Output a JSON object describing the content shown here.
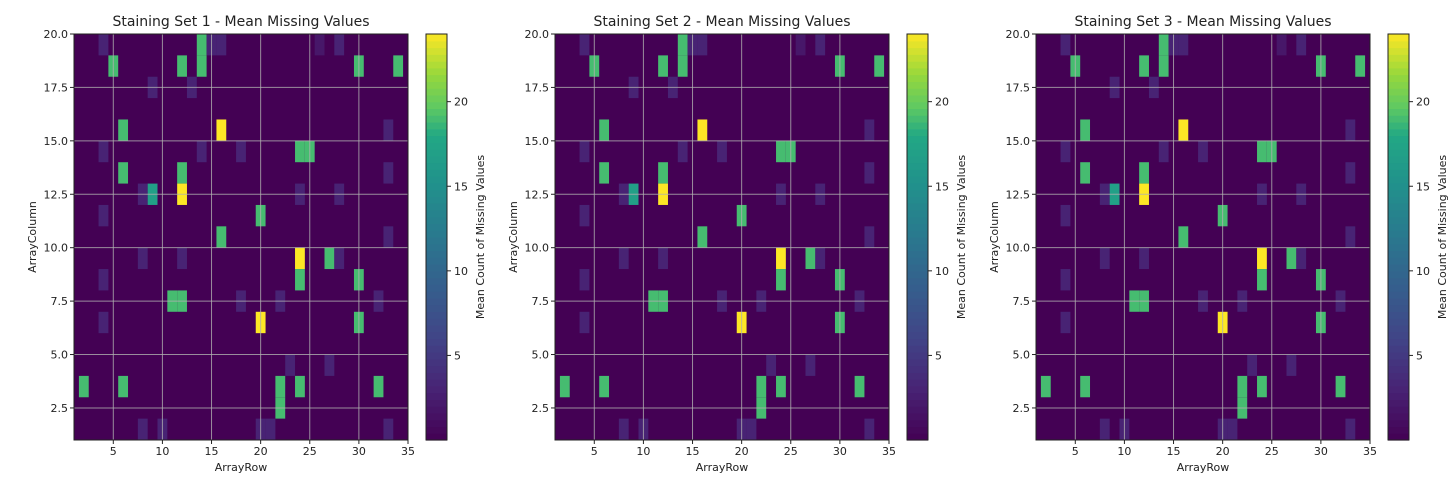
{
  "chart_data": [
    {
      "type": "heatmap",
      "title": "Staining Set 1 - Mean Missing Values",
      "xlabel": "ArrayRow",
      "ylabel": "ArrayColumn",
      "xlim": [
        1,
        35
      ],
      "ylim": [
        1,
        20
      ],
      "xticks": [
        5,
        10,
        15,
        20,
        25,
        30,
        35
      ],
      "yticks": [
        2.5,
        5.0,
        7.5,
        10.0,
        12.5,
        15.0,
        17.5,
        20.0
      ],
      "grid": true,
      "colorbar": {
        "label": "Mean Count of Missing Values",
        "ticks": [
          5,
          10,
          15,
          20
        ],
        "range": [
          0,
          24
        ],
        "colormap": "viridis"
      },
      "cells": [
        [
          4,
          19.5,
          3
        ],
        [
          5,
          18.5,
          19
        ],
        [
          14,
          19.5,
          19
        ],
        [
          14,
          18.5,
          19
        ],
        [
          15,
          19.5,
          3
        ],
        [
          16,
          19.5,
          3
        ],
        [
          26,
          19.5,
          2
        ],
        [
          28,
          19.5,
          3
        ],
        [
          12,
          18.5,
          19
        ],
        [
          30,
          18.5,
          19
        ],
        [
          34,
          18.5,
          19
        ],
        [
          9,
          17.5,
          3
        ],
        [
          13,
          17.5,
          3
        ],
        [
          16,
          15.5,
          24
        ],
        [
          6,
          15.5,
          19
        ],
        [
          33,
          15.5,
          3
        ],
        [
          4,
          14.5,
          3
        ],
        [
          14,
          14.5,
          3
        ],
        [
          18,
          14.5,
          3
        ],
        [
          24,
          14.5,
          19
        ],
        [
          25,
          14.5,
          19
        ],
        [
          6,
          13.5,
          19
        ],
        [
          12,
          13.5,
          19
        ],
        [
          33,
          13.5,
          3
        ],
        [
          8,
          12.5,
          3
        ],
        [
          9,
          12.5,
          17
        ],
        [
          12,
          12.5,
          24
        ],
        [
          24,
          12.5,
          3
        ],
        [
          28,
          12.5,
          3
        ],
        [
          4,
          11.5,
          3
        ],
        [
          20,
          11.5,
          19
        ],
        [
          16,
          10.5,
          19
        ],
        [
          33,
          10.5,
          3
        ],
        [
          8,
          9.5,
          3
        ],
        [
          12,
          9.5,
          3
        ],
        [
          24,
          9.5,
          24
        ],
        [
          27,
          9.5,
          19
        ],
        [
          28,
          9.5,
          3
        ],
        [
          4,
          8.5,
          3
        ],
        [
          24,
          8.5,
          19
        ],
        [
          30,
          8.5,
          19
        ],
        [
          11,
          7.5,
          19
        ],
        [
          12,
          7.5,
          19
        ],
        [
          18,
          7.5,
          3
        ],
        [
          22,
          7.5,
          3
        ],
        [
          32,
          7.5,
          3
        ],
        [
          4,
          6.5,
          3
        ],
        [
          20,
          6.5,
          24
        ],
        [
          30,
          6.5,
          19
        ],
        [
          23,
          4.5,
          3
        ],
        [
          27,
          4.5,
          3
        ],
        [
          2,
          3.5,
          19
        ],
        [
          6,
          3.5,
          19
        ],
        [
          22,
          3.5,
          19
        ],
        [
          24,
          3.5,
          19
        ],
        [
          32,
          3.5,
          19
        ],
        [
          22,
          2.5,
          19
        ],
        [
          8,
          1.5,
          3
        ],
        [
          10,
          1.5,
          3
        ],
        [
          20,
          1.5,
          3
        ],
        [
          21,
          1.5,
          3
        ],
        [
          33,
          1.5,
          3
        ]
      ]
    },
    {
      "type": "heatmap",
      "title": "Staining Set 2 - Mean Missing Values",
      "xlabel": "ArrayRow",
      "ylabel": "ArrayColumn",
      "xlim": [
        1,
        35
      ],
      "ylim": [
        1,
        20
      ],
      "xticks": [
        5,
        10,
        15,
        20,
        25,
        30,
        35
      ],
      "yticks": [
        2.5,
        5.0,
        7.5,
        10.0,
        12.5,
        15.0,
        17.5,
        20.0
      ],
      "grid": true,
      "colorbar": {
        "label": "Mean Count of Missing Values",
        "ticks": [
          5,
          10,
          15,
          20
        ],
        "range": [
          0,
          24
        ],
        "colormap": "viridis"
      },
      "cells": [
        [
          4,
          19.5,
          3
        ],
        [
          5,
          18.5,
          19
        ],
        [
          14,
          19.5,
          19
        ],
        [
          14,
          18.5,
          19
        ],
        [
          15,
          19.5,
          3
        ],
        [
          16,
          19.5,
          3
        ],
        [
          26,
          19.5,
          2
        ],
        [
          28,
          19.5,
          3
        ],
        [
          12,
          18.5,
          19
        ],
        [
          30,
          18.5,
          19
        ],
        [
          34,
          18.5,
          19
        ],
        [
          9,
          17.5,
          3
        ],
        [
          13,
          17.5,
          3
        ],
        [
          16,
          15.5,
          24
        ],
        [
          6,
          15.5,
          19
        ],
        [
          33,
          15.5,
          3
        ],
        [
          4,
          14.5,
          3
        ],
        [
          14,
          14.5,
          3
        ],
        [
          18,
          14.5,
          3
        ],
        [
          24,
          14.5,
          19
        ],
        [
          25,
          14.5,
          19
        ],
        [
          6,
          13.5,
          19
        ],
        [
          12,
          13.5,
          19
        ],
        [
          33,
          13.5,
          3
        ],
        [
          8,
          12.5,
          3
        ],
        [
          9,
          12.5,
          17
        ],
        [
          12,
          12.5,
          24
        ],
        [
          24,
          12.5,
          3
        ],
        [
          28,
          12.5,
          3
        ],
        [
          4,
          11.5,
          3
        ],
        [
          20,
          11.5,
          19
        ],
        [
          16,
          10.5,
          19
        ],
        [
          33,
          10.5,
          3
        ],
        [
          8,
          9.5,
          3
        ],
        [
          12,
          9.5,
          3
        ],
        [
          24,
          9.5,
          24
        ],
        [
          27,
          9.5,
          19
        ],
        [
          28,
          9.5,
          3
        ],
        [
          4,
          8.5,
          3
        ],
        [
          24,
          8.5,
          19
        ],
        [
          30,
          8.5,
          19
        ],
        [
          11,
          7.5,
          19
        ],
        [
          12,
          7.5,
          19
        ],
        [
          18,
          7.5,
          3
        ],
        [
          22,
          7.5,
          3
        ],
        [
          32,
          7.5,
          3
        ],
        [
          4,
          6.5,
          3
        ],
        [
          20,
          6.5,
          24
        ],
        [
          30,
          6.5,
          19
        ],
        [
          23,
          4.5,
          3
        ],
        [
          27,
          4.5,
          3
        ],
        [
          2,
          3.5,
          19
        ],
        [
          6,
          3.5,
          19
        ],
        [
          22,
          3.5,
          19
        ],
        [
          24,
          3.5,
          19
        ],
        [
          32,
          3.5,
          19
        ],
        [
          22,
          2.5,
          19
        ],
        [
          8,
          1.5,
          3
        ],
        [
          10,
          1.5,
          3
        ],
        [
          20,
          1.5,
          3
        ],
        [
          21,
          1.5,
          3
        ],
        [
          33,
          1.5,
          3
        ]
      ]
    },
    {
      "type": "heatmap",
      "title": "Staining Set 3 - Mean Missing Values",
      "xlabel": "ArrayRow",
      "ylabel": "ArrayColumn",
      "xlim": [
        1,
        35
      ],
      "ylim": [
        1,
        20
      ],
      "xticks": [
        5,
        10,
        15,
        20,
        25,
        30,
        35
      ],
      "yticks": [
        2.5,
        5.0,
        7.5,
        10.0,
        12.5,
        15.0,
        17.5,
        20.0
      ],
      "grid": true,
      "colorbar": {
        "label": "Mean Count of Missing Values",
        "ticks": [
          5,
          10,
          15,
          20
        ],
        "range": [
          0,
          24
        ],
        "colormap": "viridis"
      },
      "cells": [
        [
          4,
          19.5,
          3
        ],
        [
          5,
          18.5,
          19
        ],
        [
          14,
          19.5,
          19
        ],
        [
          14,
          18.5,
          19
        ],
        [
          15,
          19.5,
          3
        ],
        [
          16,
          19.5,
          3
        ],
        [
          26,
          19.5,
          2
        ],
        [
          28,
          19.5,
          3
        ],
        [
          12,
          18.5,
          19
        ],
        [
          30,
          18.5,
          19
        ],
        [
          34,
          18.5,
          19
        ],
        [
          9,
          17.5,
          3
        ],
        [
          13,
          17.5,
          3
        ],
        [
          16,
          15.5,
          24
        ],
        [
          6,
          15.5,
          19
        ],
        [
          33,
          15.5,
          3
        ],
        [
          4,
          14.5,
          3
        ],
        [
          14,
          14.5,
          3
        ],
        [
          18,
          14.5,
          3
        ],
        [
          24,
          14.5,
          19
        ],
        [
          25,
          14.5,
          19
        ],
        [
          6,
          13.5,
          19
        ],
        [
          12,
          13.5,
          19
        ],
        [
          33,
          13.5,
          3
        ],
        [
          8,
          12.5,
          3
        ],
        [
          9,
          12.5,
          17
        ],
        [
          12,
          12.5,
          24
        ],
        [
          24,
          12.5,
          3
        ],
        [
          28,
          12.5,
          3
        ],
        [
          4,
          11.5,
          3
        ],
        [
          20,
          11.5,
          19
        ],
        [
          16,
          10.5,
          19
        ],
        [
          33,
          10.5,
          3
        ],
        [
          8,
          9.5,
          3
        ],
        [
          12,
          9.5,
          3
        ],
        [
          24,
          9.5,
          24
        ],
        [
          27,
          9.5,
          19
        ],
        [
          28,
          9.5,
          3
        ],
        [
          4,
          8.5,
          3
        ],
        [
          24,
          8.5,
          19
        ],
        [
          30,
          8.5,
          19
        ],
        [
          11,
          7.5,
          19
        ],
        [
          12,
          7.5,
          19
        ],
        [
          18,
          7.5,
          3
        ],
        [
          22,
          7.5,
          3
        ],
        [
          32,
          7.5,
          3
        ],
        [
          4,
          6.5,
          3
        ],
        [
          20,
          6.5,
          24
        ],
        [
          30,
          6.5,
          19
        ],
        [
          23,
          4.5,
          3
        ],
        [
          27,
          4.5,
          3
        ],
        [
          2,
          3.5,
          19
        ],
        [
          6,
          3.5,
          19
        ],
        [
          22,
          3.5,
          19
        ],
        [
          24,
          3.5,
          19
        ],
        [
          32,
          3.5,
          19
        ],
        [
          22,
          2.5,
          19
        ],
        [
          8,
          1.5,
          3
        ],
        [
          10,
          1.5,
          3
        ],
        [
          20,
          1.5,
          3
        ],
        [
          21,
          1.5,
          3
        ],
        [
          33,
          1.5,
          3
        ]
      ]
    }
  ]
}
